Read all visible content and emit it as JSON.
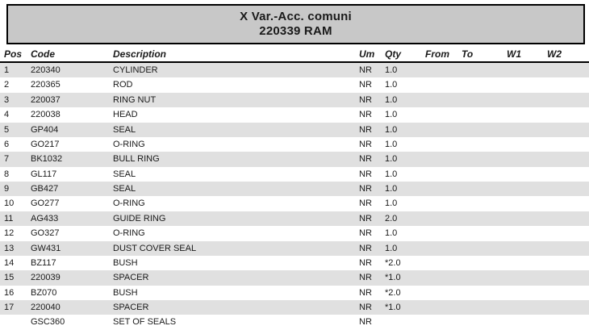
{
  "title": {
    "line1": "X Var.-Acc. comuni",
    "line2": "220339 RAM"
  },
  "table": {
    "columns": [
      {
        "key": "pos",
        "label": "Pos"
      },
      {
        "key": "code",
        "label": "Code"
      },
      {
        "key": "description",
        "label": "Description"
      },
      {
        "key": "um",
        "label": "Um"
      },
      {
        "key": "qty",
        "label": "Qty"
      },
      {
        "key": "from",
        "label": "From"
      },
      {
        "key": "to",
        "label": "To"
      },
      {
        "key": "w1",
        "label": "W1"
      },
      {
        "key": "w2",
        "label": "W2"
      }
    ],
    "rows": [
      {
        "pos": "1",
        "code": "220340",
        "description": "CYLINDER",
        "um": "NR",
        "qty": "1.0",
        "from": "",
        "to": "",
        "w1": "",
        "w2": ""
      },
      {
        "pos": "2",
        "code": "220365",
        "description": "ROD",
        "um": "NR",
        "qty": "1.0",
        "from": "",
        "to": "",
        "w1": "",
        "w2": ""
      },
      {
        "pos": "3",
        "code": "220037",
        "description": "RING NUT",
        "um": "NR",
        "qty": "1.0",
        "from": "",
        "to": "",
        "w1": "",
        "w2": ""
      },
      {
        "pos": "4",
        "code": "220038",
        "description": "HEAD",
        "um": "NR",
        "qty": "1.0",
        "from": "",
        "to": "",
        "w1": "",
        "w2": ""
      },
      {
        "pos": "5",
        "code": "GP404",
        "description": "SEAL",
        "um": "NR",
        "qty": "1.0",
        "from": "",
        "to": "",
        "w1": "",
        "w2": ""
      },
      {
        "pos": "6",
        "code": "GO217",
        "description": "O-RING",
        "um": "NR",
        "qty": "1.0",
        "from": "",
        "to": "",
        "w1": "",
        "w2": ""
      },
      {
        "pos": "7",
        "code": "BK1032",
        "description": "BULL RING",
        "um": "NR",
        "qty": "1.0",
        "from": "",
        "to": "",
        "w1": "",
        "w2": ""
      },
      {
        "pos": "8",
        "code": "GL117",
        "description": "SEAL",
        "um": "NR",
        "qty": "1.0",
        "from": "",
        "to": "",
        "w1": "",
        "w2": ""
      },
      {
        "pos": "9",
        "code": "GB427",
        "description": "SEAL",
        "um": "NR",
        "qty": "1.0",
        "from": "",
        "to": "",
        "w1": "",
        "w2": ""
      },
      {
        "pos": "10",
        "code": "GO277",
        "description": "O-RING",
        "um": "NR",
        "qty": "1.0",
        "from": "",
        "to": "",
        "w1": "",
        "w2": ""
      },
      {
        "pos": "11",
        "code": "AG433",
        "description": "GUIDE RING",
        "um": "NR",
        "qty": "2.0",
        "from": "",
        "to": "",
        "w1": "",
        "w2": ""
      },
      {
        "pos": "12",
        "code": "GO327",
        "description": "O-RING",
        "um": "NR",
        "qty": "1.0",
        "from": "",
        "to": "",
        "w1": "",
        "w2": ""
      },
      {
        "pos": "13",
        "code": "GW431",
        "description": "DUST COVER SEAL",
        "um": "NR",
        "qty": "1.0",
        "from": "",
        "to": "",
        "w1": "",
        "w2": ""
      },
      {
        "pos": "14",
        "code": "BZ117",
        "description": "BUSH",
        "um": "NR",
        "qty": "*2.0",
        "from": "",
        "to": "",
        "w1": "",
        "w2": ""
      },
      {
        "pos": "15",
        "code": "220039",
        "description": "SPACER",
        "um": "NR",
        "qty": "*1.0",
        "from": "",
        "to": "",
        "w1": "",
        "w2": ""
      },
      {
        "pos": "16",
        "code": "BZ070",
        "description": "BUSH",
        "um": "NR",
        "qty": "*2.0",
        "from": "",
        "to": "",
        "w1": "",
        "w2": ""
      },
      {
        "pos": "17",
        "code": "220040",
        "description": "SPACER",
        "um": "NR",
        "qty": "*1.0",
        "from": "",
        "to": "",
        "w1": "",
        "w2": ""
      },
      {
        "pos": "",
        "code": "GSC360",
        "description": "SET OF SEALS",
        "um": "NR",
        "qty": "",
        "from": "",
        "to": "",
        "w1": "",
        "w2": ""
      }
    ]
  },
  "colors": {
    "title_box_bg": "#c8c8c8",
    "title_box_border": "#000000",
    "row_stripe_bg": "#e0e0e0",
    "text": "#1a1a1a"
  }
}
